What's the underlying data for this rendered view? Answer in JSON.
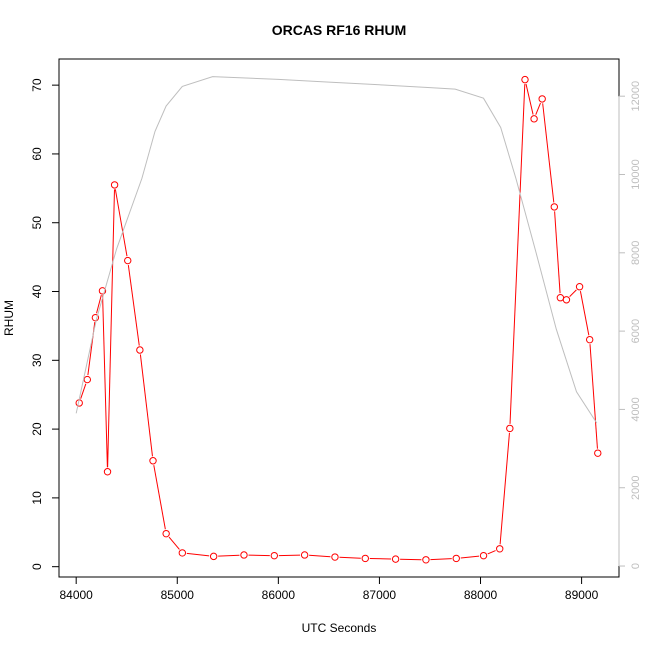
{
  "chart_data": {
    "type": "line",
    "title": "ORCAS RF16 RHUM",
    "xlabel": "UTC Seconds",
    "ylabel": "RHUM",
    "xlim": [
      83830,
      89370
    ],
    "ylim": [
      -1.5,
      73.8
    ],
    "xticks": [
      84000,
      85000,
      86000,
      87000,
      88000,
      89000
    ],
    "yticks": [
      0,
      10,
      20,
      30,
      40,
      50,
      60,
      70
    ],
    "y2lim": [
      -280,
      12950
    ],
    "y2ticks": [
      0,
      2000,
      4000,
      6000,
      8000,
      10000,
      12000
    ],
    "grid": false,
    "series": [
      {
        "color": "#ff0000",
        "axis": "left",
        "markers": true,
        "x": [
          84030,
          84110,
          84190,
          84260,
          84310,
          84380,
          84510,
          84630,
          84760,
          84890,
          85050,
          85360,
          85660,
          85960,
          86260,
          86560,
          86860,
          87160,
          87460,
          87760,
          88030,
          88190,
          88290,
          88440,
          88530,
          88610,
          88730,
          88790,
          88850,
          88980,
          89080,
          89160
        ],
        "y": [
          23.8,
          27.2,
          36.2,
          40.1,
          13.8,
          55.5,
          44.5,
          31.5,
          15.4,
          4.8,
          2.0,
          1.5,
          1.7,
          1.6,
          1.7,
          1.4,
          1.2,
          1.1,
          1.0,
          1.2,
          1.6,
          2.6,
          20.1,
          70.8,
          65.1,
          68.0,
          52.3,
          39.1,
          38.8,
          40.7,
          33.0,
          16.5
        ]
      },
      {
        "color": "#bebebe",
        "axis": "right",
        "markers": false,
        "x": [
          84000,
          84200,
          84400,
          84650,
          84780,
          84890,
          85050,
          85350,
          86000,
          86500,
          87000,
          87500,
          87750,
          88030,
          88200,
          88350,
          88550,
          88750,
          88950,
          89150
        ],
        "y": [
          3900,
          6300,
          8100,
          9900,
          11100,
          11750,
          12250,
          12500,
          12430,
          12360,
          12290,
          12220,
          12180,
          11950,
          11200,
          9900,
          8000,
          6050,
          4450,
          3650
        ]
      }
    ]
  }
}
